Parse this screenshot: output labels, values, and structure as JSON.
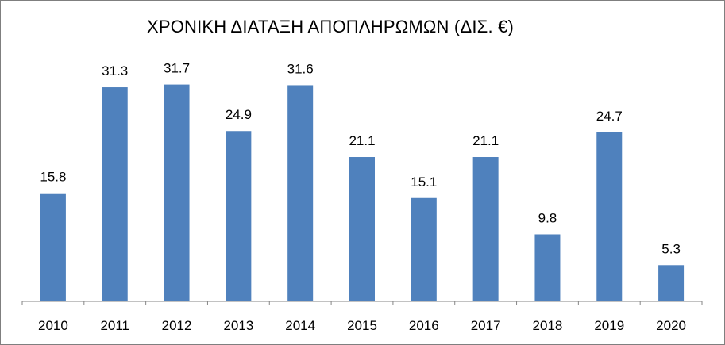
{
  "chart_data": {
    "type": "bar",
    "title": "ΧΡΟΝΙΚΗ ΔΙΑΤΑΞΗ ΑΠΟΠΛΗΡΩΜΩΝ (ΔΙΣ. €)",
    "xlabel": "",
    "ylabel": "",
    "categories": [
      "2010",
      "2011",
      "2012",
      "2013",
      "2014",
      "2015",
      "2016",
      "2017",
      "2018",
      "2019",
      "2020"
    ],
    "values": [
      15.8,
      31.3,
      31.7,
      24.9,
      31.6,
      21.1,
      15.1,
      21.1,
      9.8,
      24.7,
      5.3
    ],
    "ylim": [
      0,
      32
    ],
    "grid": false,
    "legend": "none",
    "data_labels": true,
    "colors": {
      "bar": "#4f81bd",
      "axis": "#868686",
      "text": "#000000"
    }
  }
}
